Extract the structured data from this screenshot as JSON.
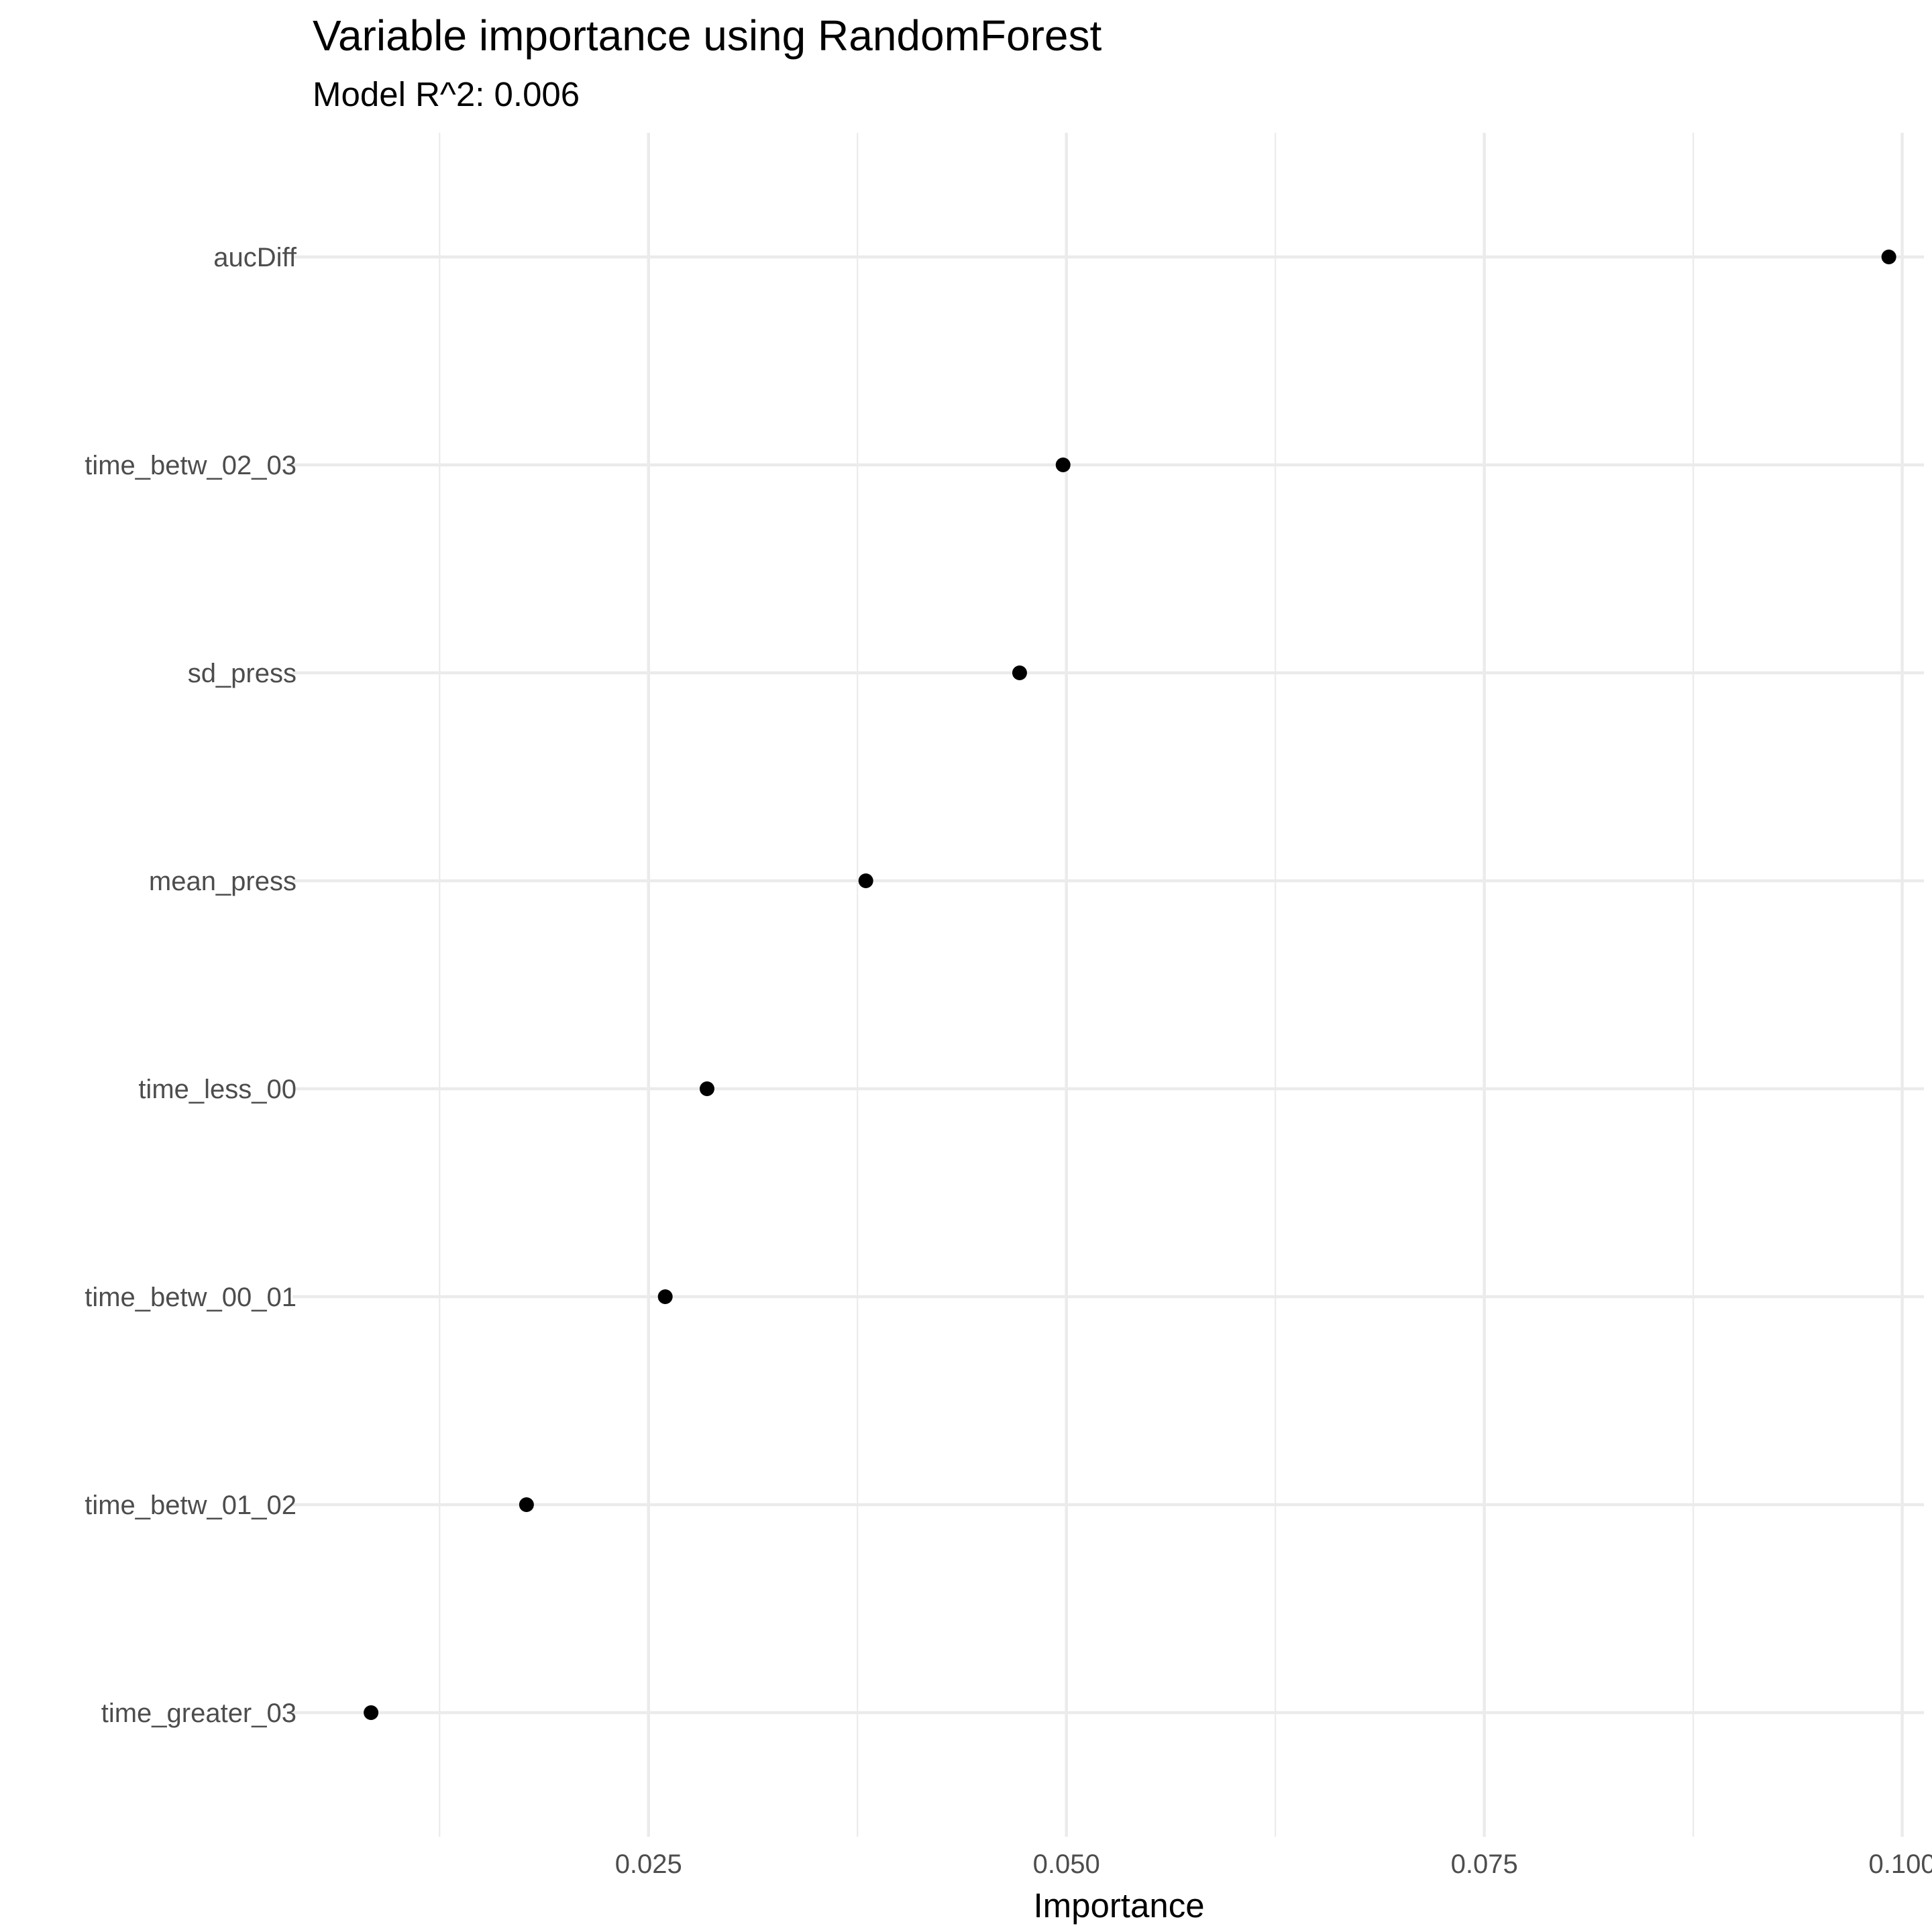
{
  "chart_data": {
    "type": "scatter",
    "title": "Variable importance using RandomForest",
    "subtitle": "Model R^2: 0.006",
    "xlabel": "Importance",
    "ylabel": "",
    "xlim": [
      0.0037,
      0.1013
    ],
    "x_ticks": [
      0.025,
      0.05,
      0.075,
      0.1
    ],
    "x_tick_labels": [
      "0.025",
      "0.050",
      "0.075",
      "0.100"
    ],
    "categories": [
      "aucDiff",
      "time_betw_02_03",
      "sd_press",
      "mean_press",
      "time_less_00",
      "time_betw_00_01",
      "time_betw_01_02",
      "time_greater_03"
    ],
    "values": [
      0.0992,
      0.0498,
      0.0472,
      0.038,
      0.0285,
      0.026,
      0.0177,
      0.0084
    ],
    "grid": true,
    "legend": "none",
    "point_color": "#000000"
  }
}
